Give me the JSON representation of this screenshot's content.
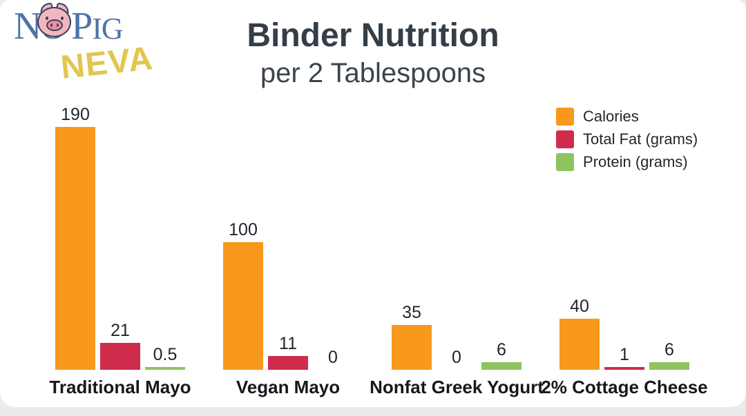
{
  "colors": {
    "accent_orange": "#F8981D",
    "accent_red": "#CF2B4D",
    "accent_green": "#8DC45E",
    "title_text": "#343E48",
    "value_label_text": "#1F242B",
    "category_label_text": "#15181D",
    "logo_blue": "#4E73A8",
    "neva_yellow": "#E2C64F",
    "pig_pink": "#F2B6C1",
    "page_background": "#E9EBED",
    "card_background": "#FFFFFF"
  },
  "logo": {
    "word_no_n": "N",
    "word_no_o": "O",
    "word_pig_p": "P",
    "word_pig_ig": "IG",
    "neva": "NEVA",
    "pig_icon": "pig-face-icon"
  },
  "chart_data": {
    "type": "bar",
    "title": "Binder Nutrition",
    "subtitle": "per 2 Tablespoons",
    "categories": [
      "Traditional Mayo",
      "Vegan Mayo",
      "Nonfat Greek Yogurt",
      "2% Cottage Cheese"
    ],
    "series": [
      {
        "name": "Calories",
        "color": "#F8981D",
        "values": [
          190,
          100,
          35,
          40
        ]
      },
      {
        "name": "Total Fat (grams)",
        "color": "#CF2B4D",
        "values": [
          21,
          11,
          0,
          1
        ]
      },
      {
        "name": "Protein (grams)",
        "color": "#8DC45E",
        "values": [
          0.5,
          0,
          6,
          6
        ]
      }
    ],
    "value_labels": [
      [
        "190",
        "100",
        "35",
        "40"
      ],
      [
        "21",
        "11",
        "0",
        "1"
      ],
      [
        "0.5",
        "0",
        "6",
        "6"
      ]
    ],
    "legend_position": "top-right",
    "ylim": [
      0,
      200
    ],
    "grid": false,
    "axes_visible": false,
    "value_labels_shown": true
  }
}
